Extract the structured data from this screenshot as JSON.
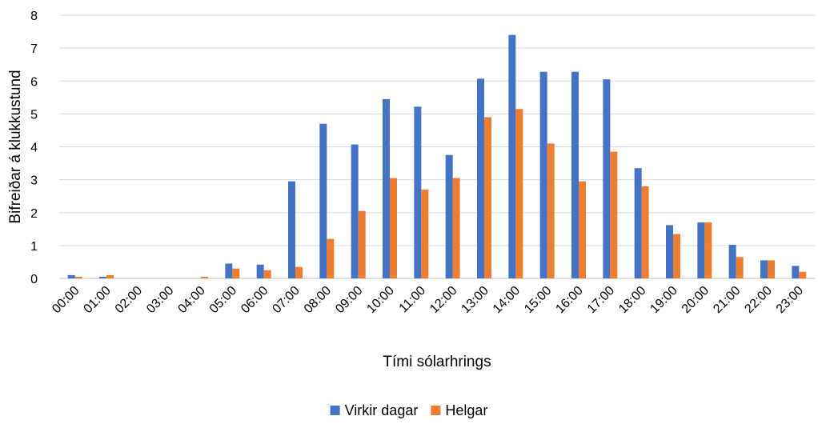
{
  "chart_data": {
    "type": "bar",
    "categories": [
      "00:00",
      "01:00",
      "02:00",
      "03:00",
      "04:00",
      "05:00",
      "06:00",
      "07:00",
      "08:00",
      "09:00",
      "10:00",
      "11:00",
      "12:00",
      "13:00",
      "14:00",
      "15:00",
      "16:00",
      "17:00",
      "18:00",
      "19:00",
      "20:00",
      "21:00",
      "22:00",
      "23:00"
    ],
    "series": [
      {
        "name": "Virkir dagar",
        "color": "#4472C4",
        "values": [
          0.1,
          0.05,
          0,
          0,
          0,
          0.45,
          0.42,
          2.95,
          4.7,
          4.07,
          5.45,
          5.22,
          3.75,
          6.07,
          7.4,
          6.28,
          6.28,
          6.05,
          3.35,
          1.62,
          1.7,
          1.02,
          0.55,
          0.38
        ]
      },
      {
        "name": "Helgar",
        "color": "#ED7D31",
        "values": [
          0.05,
          0.1,
          0,
          0,
          0.05,
          0.3,
          0.25,
          0.35,
          1.2,
          2.05,
          3.05,
          2.7,
          3.05,
          4.9,
          5.15,
          4.1,
          2.95,
          3.85,
          2.8,
          1.35,
          1.7,
          0.65,
          0.55,
          0.2
        ]
      }
    ],
    "xlabel": "Tími sólarhrings",
    "ylabel": "Bifreiðar á klukkustund",
    "ylim": [
      0,
      8
    ],
    "yticks": [
      0,
      1,
      2,
      3,
      4,
      5,
      6,
      7,
      8
    ],
    "grid": true,
    "legend_position": "bottom"
  }
}
